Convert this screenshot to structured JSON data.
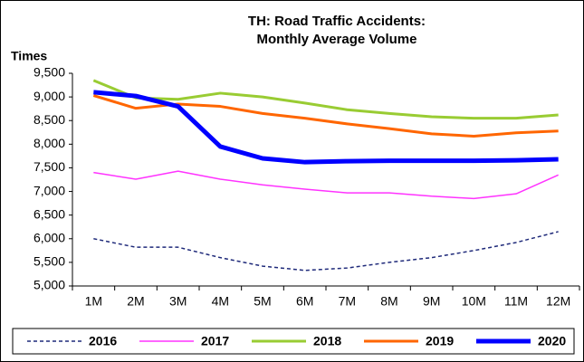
{
  "chart_data": {
    "type": "line",
    "title_lines": [
      "TH: Road Traffic Accidents:",
      "Monthly Average Volume"
    ],
    "ylabel": "Times",
    "categories": [
      "1M",
      "2M",
      "3M",
      "4M",
      "5M",
      "6M",
      "7M",
      "8M",
      "9M",
      "10M",
      "11M",
      "12M"
    ],
    "ylim": [
      5000,
      9500
    ],
    "yticks": [
      {
        "value": 5000,
        "label": "5,000"
      },
      {
        "value": 5500,
        "label": "5,500"
      },
      {
        "value": 6000,
        "label": "6,000"
      },
      {
        "value": 6500,
        "label": "6,500"
      },
      {
        "value": 7000,
        "label": "7,000"
      },
      {
        "value": 7500,
        "label": "7,500"
      },
      {
        "value": 8000,
        "label": "8,000"
      },
      {
        "value": 8500,
        "label": "8,500"
      },
      {
        "value": 9000,
        "label": "9,000"
      },
      {
        "value": 9500,
        "label": "9,500"
      }
    ],
    "grid": false,
    "legend": "bottom",
    "series": [
      {
        "name": "2016",
        "color": "#1f2a7a",
        "dash": true,
        "width": 1.5,
        "values": [
          6000,
          5820,
          5820,
          5600,
          5420,
          5330,
          5380,
          5500,
          5600,
          5750,
          5920,
          6150
        ]
      },
      {
        "name": "2017",
        "color": "#ff33ff",
        "dash": false,
        "width": 1.5,
        "values": [
          7400,
          7260,
          7430,
          7260,
          7140,
          7050,
          6970,
          6970,
          6900,
          6850,
          6950,
          7350
        ]
      },
      {
        "name": "2018",
        "color": "#99cc33",
        "dash": false,
        "width": 3,
        "values": [
          9350,
          8980,
          8950,
          9080,
          9000,
          8870,
          8730,
          8650,
          8580,
          8550,
          8550,
          8620
        ]
      },
      {
        "name": "2019",
        "color": "#ff6600",
        "dash": false,
        "width": 3,
        "values": [
          9030,
          8760,
          8850,
          8800,
          8650,
          8550,
          8430,
          8330,
          8220,
          8170,
          8240,
          8280
        ]
      },
      {
        "name": "2020",
        "color": "#0000ff",
        "dash": false,
        "width": 5,
        "values": [
          9100,
          9020,
          8800,
          7950,
          7700,
          7620,
          7640,
          7650,
          7650,
          7650,
          7660,
          7680
        ]
      }
    ]
  }
}
